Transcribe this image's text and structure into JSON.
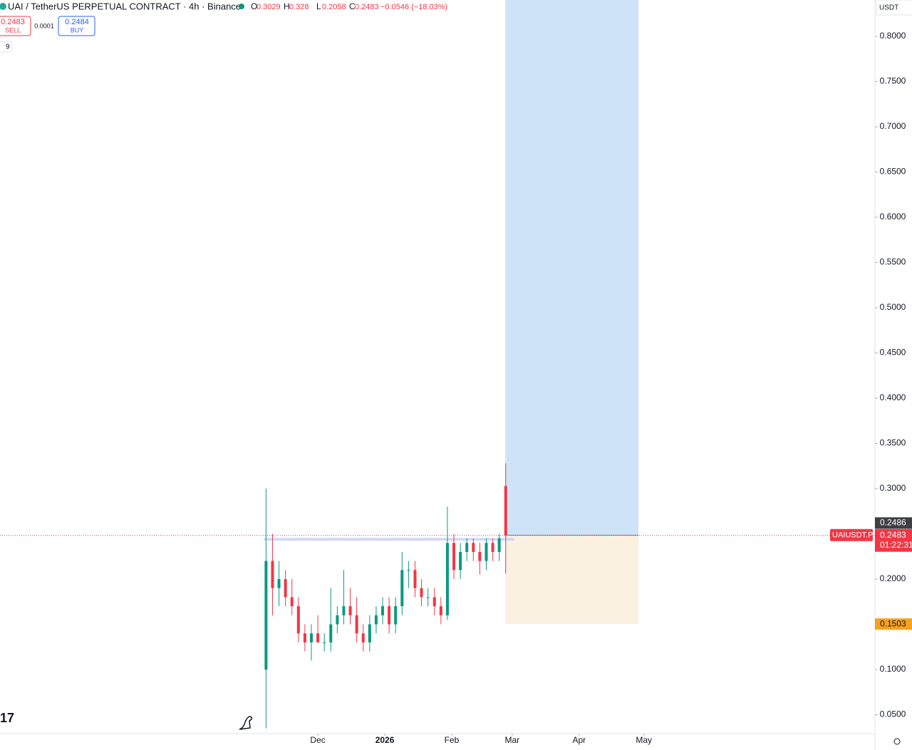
{
  "header": {
    "symbol": "UAI / TetherUS PERPETUAL CONTRACT · 4h · Binance",
    "o": "O",
    "h": "H",
    "l": "L",
    "c": "C",
    "change": "−0.0546 (−18.03%)",
    "sell_price": "0.2483",
    "sell": "SELL",
    "spread": "0.0001",
    "buy_price": "0.2484",
    "buy": "BUY",
    "indicators": "9",
    "currency": "USDT"
  },
  "chart_data": {
    "type": "candlestick",
    "x": [
      6,
      9,
      12,
      15,
      18,
      21,
      24,
      27,
      30,
      33,
      36,
      39,
      42,
      45,
      48,
      51,
      54,
      57,
      60,
      63,
      66,
      69,
      72,
      75,
      78,
      81,
      84,
      87,
      90,
      93,
      96,
      99,
      102,
      105,
      108,
      111,
      114,
      117
    ],
    "open": [
      0.1,
      0.22,
      0.19,
      0.2,
      0.18,
      0.17,
      0.14,
      0.13,
      0.14,
      0.13,
      0.13,
      0.15,
      0.16,
      0.17,
      0.16,
      0.14,
      0.13,
      0.15,
      0.16,
      0.17,
      0.15,
      0.17,
      0.21,
      0.21,
      0.19,
      0.18,
      0.18,
      0.17,
      0.16,
      0.24,
      0.21,
      0.23,
      0.24,
      0.23,
      0.22,
      0.24,
      0.23,
      0.3029
    ],
    "high": [
      0.3,
      0.25,
      0.22,
      0.21,
      0.2,
      0.18,
      0.15,
      0.15,
      0.16,
      0.14,
      0.19,
      0.17,
      0.21,
      0.19,
      0.18,
      0.15,
      0.16,
      0.17,
      0.18,
      0.18,
      0.18,
      0.23,
      0.22,
      0.22,
      0.2,
      0.19,
      0.19,
      0.18,
      0.28,
      0.25,
      0.24,
      0.245,
      0.245,
      0.24,
      0.245,
      0.245,
      0.25,
      0.328
    ],
    "low": [
      0.035,
      0.16,
      0.17,
      0.17,
      0.16,
      0.13,
      0.12,
      0.11,
      0.13,
      0.12,
      0.12,
      0.14,
      0.15,
      0.15,
      0.13,
      0.12,
      0.12,
      0.14,
      0.15,
      0.14,
      0.14,
      0.16,
      0.19,
      0.18,
      0.17,
      0.17,
      0.16,
      0.15,
      0.155,
      0.2,
      0.2,
      0.22,
      0.22,
      0.205,
      0.21,
      0.22,
      0.22,
      0.2058
    ],
    "close": [
      0.22,
      0.19,
      0.2,
      0.18,
      0.17,
      0.14,
      0.13,
      0.14,
      0.13,
      0.13,
      0.15,
      0.16,
      0.17,
      0.16,
      0.14,
      0.13,
      0.15,
      0.16,
      0.17,
      0.15,
      0.17,
      0.21,
      0.21,
      0.19,
      0.18,
      0.18,
      0.17,
      0.16,
      0.24,
      0.21,
      0.23,
      0.24,
      0.23,
      0.22,
      0.24,
      0.23,
      0.245,
      0.2483
    ],
    "up_color": "#089981",
    "down_color": "#f23645",
    "xlim": [
      -117.2,
      288
    ],
    "xticks": [
      {
        "value": 30,
        "label": "Dec"
      },
      {
        "value": 61,
        "label": "2026"
      },
      {
        "value": 92,
        "label": "Feb"
      },
      {
        "value": 120,
        "label": "Mar"
      },
      {
        "value": 151,
        "label": "Apr"
      },
      {
        "value": 181,
        "label": "May"
      }
    ],
    "ylim": [
      0.0331,
      0.8402
    ],
    "yticks": [
      {
        "value": 0.8,
        "label": "0.8000"
      },
      {
        "value": 0.75,
        "label": "0.7500"
      },
      {
        "value": 0.7,
        "label": "0.7000"
      },
      {
        "value": 0.65,
        "label": "0.6500"
      },
      {
        "value": 0.6,
        "label": "0.6000"
      },
      {
        "value": 0.55,
        "label": "0.5500"
      },
      {
        "value": 0.5,
        "label": "0.5000"
      },
      {
        "value": 0.45,
        "label": "0.4500"
      },
      {
        "value": 0.4,
        "label": "0.4000"
      },
      {
        "value": 0.35,
        "label": "0.3500"
      },
      {
        "value": 0.3,
        "label": "0.3000"
      },
      {
        "value": 0.2,
        "label": "0.2000"
      },
      {
        "value": 0.1,
        "label": "0.1000"
      },
      {
        "value": 0.05,
        "label": "0.0500"
      }
    ],
    "zone": {
      "x": [
        5,
        121
      ],
      "y": [
        0.2425,
        0.2455
      ],
      "color": "#c5cff5"
    },
    "position": {
      "x": [
        116.8,
        178.5
      ],
      "entry": {
        "value": 0.2486,
        "label": "0.2486"
      },
      "stop": {
        "value": 0.1503,
        "label": "0.1503"
      },
      "target_color": "#cfe3f8",
      "stop_color": "#fbf1e1"
    },
    "last_price": {
      "value": 0.2483,
      "label": "0.2483",
      "symbol": "UAIUSDT.P",
      "countdown": "01:22:31"
    }
  }
}
